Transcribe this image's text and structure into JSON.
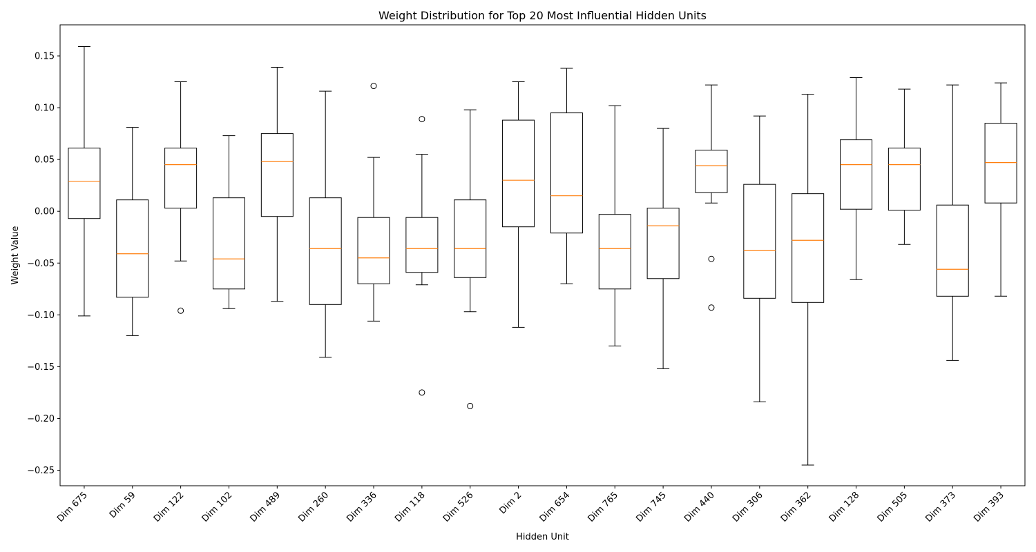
{
  "chart_data": {
    "type": "boxplot",
    "title": "Weight Distribution for Top 20 Most Influential Hidden Units",
    "xlabel": "Hidden Unit",
    "ylabel": "Weight Value",
    "ylim": [
      -0.265,
      0.18
    ],
    "yticks": [
      -0.25,
      -0.2,
      -0.15,
      -0.1,
      -0.05,
      0.0,
      0.05,
      0.1,
      0.15
    ],
    "ytick_labels": [
      "−0.25",
      "−0.20",
      "−0.15",
      "−0.10",
      "−0.05",
      "0.00",
      "0.05",
      "0.10",
      "0.15"
    ],
    "grid": false,
    "colors": {
      "box": "#000000",
      "median": "#ff7f0e"
    },
    "boxes": [
      {
        "label": "Dim 675",
        "whislo": -0.101,
        "q1": -0.007,
        "med": 0.029,
        "q3": 0.061,
        "whishi": 0.159,
        "fliers": []
      },
      {
        "label": "Dim 59",
        "whislo": -0.12,
        "q1": -0.083,
        "med": -0.041,
        "q3": 0.011,
        "whishi": 0.081,
        "fliers": []
      },
      {
        "label": "Dim 122",
        "whislo": -0.048,
        "q1": 0.003,
        "med": 0.045,
        "q3": 0.061,
        "whishi": 0.125,
        "fliers": [
          -0.096
        ]
      },
      {
        "label": "Dim 102",
        "whislo": -0.094,
        "q1": -0.075,
        "med": -0.046,
        "q3": 0.013,
        "whishi": 0.073,
        "fliers": []
      },
      {
        "label": "Dim 489",
        "whislo": -0.087,
        "q1": -0.005,
        "med": 0.048,
        "q3": 0.075,
        "whishi": 0.139,
        "fliers": []
      },
      {
        "label": "Dim 260",
        "whislo": -0.141,
        "q1": -0.09,
        "med": -0.036,
        "q3": 0.013,
        "whishi": 0.116,
        "fliers": []
      },
      {
        "label": "Dim 336",
        "whislo": -0.106,
        "q1": -0.07,
        "med": -0.045,
        "q3": -0.006,
        "whishi": 0.052,
        "fliers": [
          0.121
        ]
      },
      {
        "label": "Dim 118",
        "whislo": -0.071,
        "q1": -0.059,
        "med": -0.036,
        "q3": -0.006,
        "whishi": 0.055,
        "fliers": [
          0.089,
          -0.175
        ]
      },
      {
        "label": "Dim 526",
        "whislo": -0.097,
        "q1": -0.064,
        "med": -0.036,
        "q3": 0.011,
        "whishi": 0.098,
        "fliers": [
          -0.188
        ]
      },
      {
        "label": "Dim 2",
        "whislo": -0.112,
        "q1": -0.015,
        "med": 0.03,
        "q3": 0.088,
        "whishi": 0.125,
        "fliers": []
      },
      {
        "label": "Dim 654",
        "whislo": -0.07,
        "q1": -0.021,
        "med": 0.015,
        "q3": 0.095,
        "whishi": 0.138,
        "fliers": []
      },
      {
        "label": "Dim 765",
        "whislo": -0.13,
        "q1": -0.075,
        "med": -0.036,
        "q3": -0.003,
        "whishi": 0.102,
        "fliers": []
      },
      {
        "label": "Dim 745",
        "whislo": -0.152,
        "q1": -0.065,
        "med": -0.014,
        "q3": 0.003,
        "whishi": 0.08,
        "fliers": []
      },
      {
        "label": "Dim 440",
        "whislo": 0.008,
        "q1": 0.018,
        "med": 0.044,
        "q3": 0.059,
        "whishi": 0.122,
        "fliers": [
          -0.046,
          -0.093
        ]
      },
      {
        "label": "Dim 306",
        "whislo": -0.184,
        "q1": -0.084,
        "med": -0.038,
        "q3": 0.026,
        "whishi": 0.092,
        "fliers": []
      },
      {
        "label": "Dim 362",
        "whislo": -0.245,
        "q1": -0.088,
        "med": -0.028,
        "q3": 0.017,
        "whishi": 0.113,
        "fliers": []
      },
      {
        "label": "Dim 128",
        "whislo": -0.066,
        "q1": 0.002,
        "med": 0.045,
        "q3": 0.069,
        "whishi": 0.129,
        "fliers": []
      },
      {
        "label": "Dim 505",
        "whislo": -0.032,
        "q1": 0.001,
        "med": 0.045,
        "q3": 0.061,
        "whishi": 0.118,
        "fliers": []
      },
      {
        "label": "Dim 373",
        "whislo": -0.144,
        "q1": -0.082,
        "med": -0.056,
        "q3": 0.006,
        "whishi": 0.122,
        "fliers": []
      },
      {
        "label": "Dim 393",
        "whislo": -0.082,
        "q1": 0.008,
        "med": 0.047,
        "q3": 0.085,
        "whishi": 0.124,
        "fliers": []
      }
    ]
  }
}
